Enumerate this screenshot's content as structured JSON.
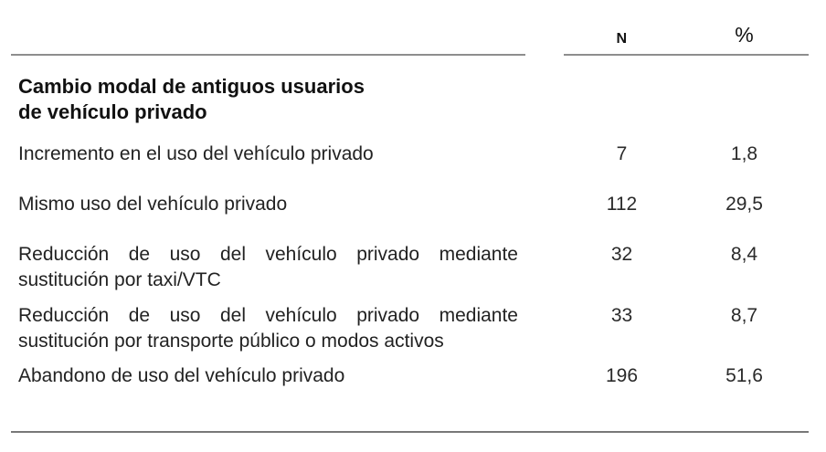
{
  "table": {
    "columns": {
      "n_label": "N",
      "pct_label": "%"
    },
    "section_header": {
      "line1": "Cambio modal de antiguos usuarios",
      "line2": "de vehículo privado"
    },
    "rows": [
      {
        "label": "Incremento en el uso del vehículo privado",
        "n": "7",
        "pct": "1,8"
      },
      {
        "label": "Mismo uso del vehículo privado",
        "n": "112",
        "pct": "29,5"
      },
      {
        "label": "Reducción de uso del vehículo privado mediante sustitución por taxi/VTC",
        "n": "32",
        "pct": "8,4"
      },
      {
        "label": "Reducción de uso del vehículo privado mediante sustitución por transporte público o modos activos",
        "n": "33",
        "pct": "8,7"
      },
      {
        "label": "Abandono de uso del vehículo privado",
        "n": "196",
        "pct": "51,6"
      }
    ],
    "colors": {
      "header_rule": "#8e8e8e",
      "bottom_rule": "#787878",
      "text": "#1c1c1c"
    }
  }
}
